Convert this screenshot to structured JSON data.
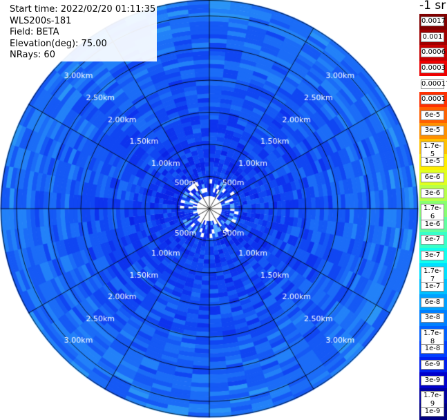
{
  "info": {
    "start_time": "Start time: 2022/02/20 01:11:35",
    "instrument": "WLS200s-181",
    "field": "Field: BETA",
    "elevation": "Elevation(deg): 75.00",
    "nrays": "NRays: 60"
  },
  "colorbar": {
    "title": "-1 sr",
    "labels": [
      "0.0017",
      "0.001",
      "0.0006",
      "0.0003",
      "0.00017",
      "0.0001",
      "6e-5",
      "3e-5",
      "1.7e-5",
      "1e-5",
      "6e-6",
      "3e-6",
      "1.7e-6",
      "1e-6",
      "6e-7",
      "3e-7",
      "1.7e-7",
      "1e-7",
      "6e-8",
      "3e-8",
      "1.7e-8",
      "1e-8",
      "6e-9",
      "3e-9",
      "1.7e-9",
      "1e-9"
    ],
    "colors": [
      "#800000",
      "#a00000",
      "#c80000",
      "#ee0000",
      "#ffffff",
      "#ff3000",
      "#ff6000",
      "#ff9000",
      "#ffc000",
      "#ffee00",
      "#e0ff20",
      "#b8ff48",
      "#88ff70",
      "#60ffa0",
      "#38ffc8",
      "#10ffee",
      "#00e0ff",
      "#00c0ff",
      "#00a0ff",
      "#0080ff",
      "#0060ff",
      "#0040ff",
      "#0020ee",
      "#0000cc",
      "#0000a0",
      "#000080"
    ]
  },
  "range_rings": [
    "500m",
    "1.00km",
    "1.50km",
    "2.00km",
    "2.50km",
    "3.00km"
  ],
  "colors": {
    "ring_line": "#000000",
    "range_label": "#ffffff",
    "data_palette": [
      "#0a24e6",
      "#0d33ee",
      "#1046f2",
      "#1559f5",
      "#1b6cf7",
      "#2281f8",
      "#2a94f6"
    ]
  }
}
